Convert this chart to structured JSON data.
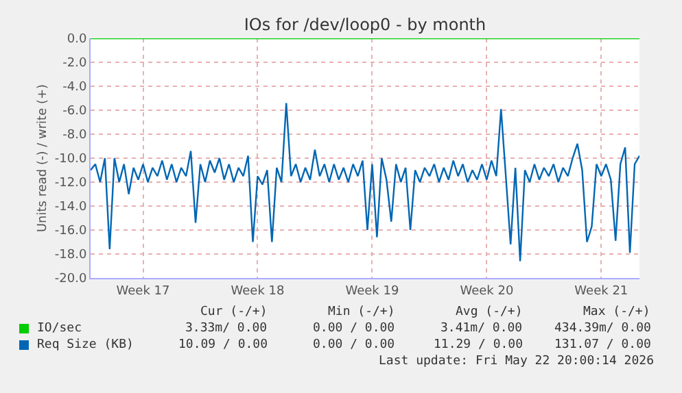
{
  "chart_data": {
    "type": "line",
    "title": "IOs for /dev/loop0 - by month",
    "ylabel": "Units read (-) / write (+)",
    "categories": [
      null,
      null,
      null,
      null,
      null,
      null,
      null,
      null,
      null,
      null,
      null,
      "Week 17",
      null,
      null,
      null,
      null,
      null,
      null,
      null,
      null,
      null,
      null,
      null,
      null,
      null,
      null,
      null,
      null,
      null,
      null,
      null,
      null,
      null,
      null,
      null,
      "Week 18",
      null,
      null,
      null,
      null,
      null,
      null,
      null,
      null,
      null,
      null,
      null,
      null,
      null,
      null,
      null,
      null,
      null,
      null,
      null,
      null,
      null,
      null,
      null,
      "Week 19",
      null,
      null,
      null,
      null,
      null,
      null,
      null,
      null,
      null,
      null,
      null,
      null,
      null,
      null,
      null,
      null,
      null,
      null,
      null,
      null,
      null,
      null,
      null,
      "Week 20",
      null,
      null,
      null,
      null,
      null,
      null,
      null,
      null,
      null,
      null,
      null,
      null,
      null,
      null,
      null,
      null,
      null,
      null,
      null,
      null,
      null,
      null,
      null,
      "Week 21",
      null,
      null,
      null,
      null,
      null,
      null,
      null,
      null
    ],
    "ylim": [
      -20,
      0
    ],
    "yticks": [
      {
        "value": 0,
        "label": "0.0"
      },
      {
        "value": -2,
        "label": "-2.0"
      },
      {
        "value": -4,
        "label": "-4.0"
      },
      {
        "value": -6,
        "label": "-6.0"
      },
      {
        "value": -8,
        "label": "-8.0"
      },
      {
        "value": -10,
        "label": "-10.0"
      },
      {
        "value": -12,
        "label": "-12.0"
      },
      {
        "value": -14,
        "label": "-14.0"
      },
      {
        "value": -16,
        "label": "-16.0"
      },
      {
        "value": -18,
        "label": "-18.0"
      },
      {
        "value": -20,
        "label": "-20.0"
      }
    ],
    "grid": true,
    "legend": "bottom left",
    "marker": "none",
    "line_style": "solid",
    "series": [
      {
        "name": "IO/sec",
        "color": "#00cc00",
        "values": [
          0,
          0,
          0,
          0,
          0,
          0,
          0,
          0,
          0,
          0,
          0,
          0,
          0,
          0,
          0,
          0,
          0,
          0,
          0,
          0,
          0,
          0,
          0,
          0,
          0,
          0,
          0,
          0,
          0,
          0,
          0,
          0,
          0,
          0,
          0,
          0,
          0,
          0,
          0,
          0,
          0,
          0,
          0,
          0,
          0,
          0,
          0,
          0,
          0,
          0,
          0,
          0,
          0,
          0,
          0,
          0,
          0,
          0,
          0,
          0,
          0,
          0,
          0,
          0,
          0,
          0,
          0,
          0,
          0,
          0,
          0,
          0,
          0,
          0,
          0,
          0,
          0,
          0,
          0,
          0,
          0,
          0,
          0,
          0,
          0,
          0,
          0,
          0,
          0,
          0,
          0,
          0,
          0,
          0,
          0,
          0,
          0,
          0,
          0,
          0,
          0,
          0,
          0,
          0,
          0,
          0,
          0,
          0,
          0,
          0,
          0,
          0,
          0,
          0,
          0,
          0
        ]
      },
      {
        "name": "Req Size (KB)",
        "color": "#0066b3",
        "values": [
          -11.0,
          -10.5,
          -12.0,
          -10.0,
          -17.6,
          -10.0,
          -12.0,
          -10.5,
          -13.0,
          -10.8,
          -11.8,
          -10.5,
          -12.0,
          -10.8,
          -11.5,
          -10.2,
          -11.8,
          -10.5,
          -12.0,
          -10.8,
          -11.5,
          -9.4,
          -15.4,
          -10.5,
          -12.0,
          -10.2,
          -11.2,
          -10.0,
          -11.8,
          -10.5,
          -12.0,
          -10.8,
          -11.5,
          -9.8,
          -17.0,
          -11.5,
          -12.2,
          -11.0,
          -17.0,
          -10.8,
          -12.0,
          -5.4,
          -11.5,
          -10.5,
          -12.0,
          -10.8,
          -11.8,
          -9.3,
          -11.5,
          -10.5,
          -12.0,
          -10.5,
          -11.8,
          -10.8,
          -12.0,
          -10.5,
          -11.5,
          -10.2,
          -16.0,
          -10.5,
          -16.6,
          -10.0,
          -11.8,
          -15.3,
          -10.5,
          -12.0,
          -10.8,
          -16.0,
          -11.0,
          -12.0,
          -10.8,
          -11.5,
          -10.5,
          -12.0,
          -10.8,
          -11.8,
          -10.2,
          -11.5,
          -10.5,
          -12.0,
          -11.0,
          -11.8,
          -10.5,
          -11.8,
          -10.2,
          -11.5,
          -5.9,
          -11.5,
          -17.2,
          -10.8,
          -18.6,
          -11.0,
          -12.0,
          -10.5,
          -11.8,
          -10.8,
          -11.5,
          -10.5,
          -12.0,
          -10.8,
          -11.5,
          -10.0,
          -8.8,
          -11.0,
          -17.0,
          -15.7,
          -10.5,
          -11.5,
          -10.5,
          -11.8,
          -16.9,
          -10.5,
          -9.1,
          -17.9,
          -10.5,
          -9.8
        ]
      }
    ],
    "annotations": [
      "Cur (-/+)",
      "Min (-/+)",
      "Avg (-/+)",
      "Max (-/+)",
      "3.33m/ 0.00",
      "0.00 / 0.00",
      "3.41m/ 0.00",
      "434.39m/ 0.00",
      "10.09 / 0.00",
      "0.00 / 0.00",
      "11.29 / 0.00",
      "131.07 / 0.00",
      "Last update: Fri May 22 20:00:14 2026"
    ]
  }
}
